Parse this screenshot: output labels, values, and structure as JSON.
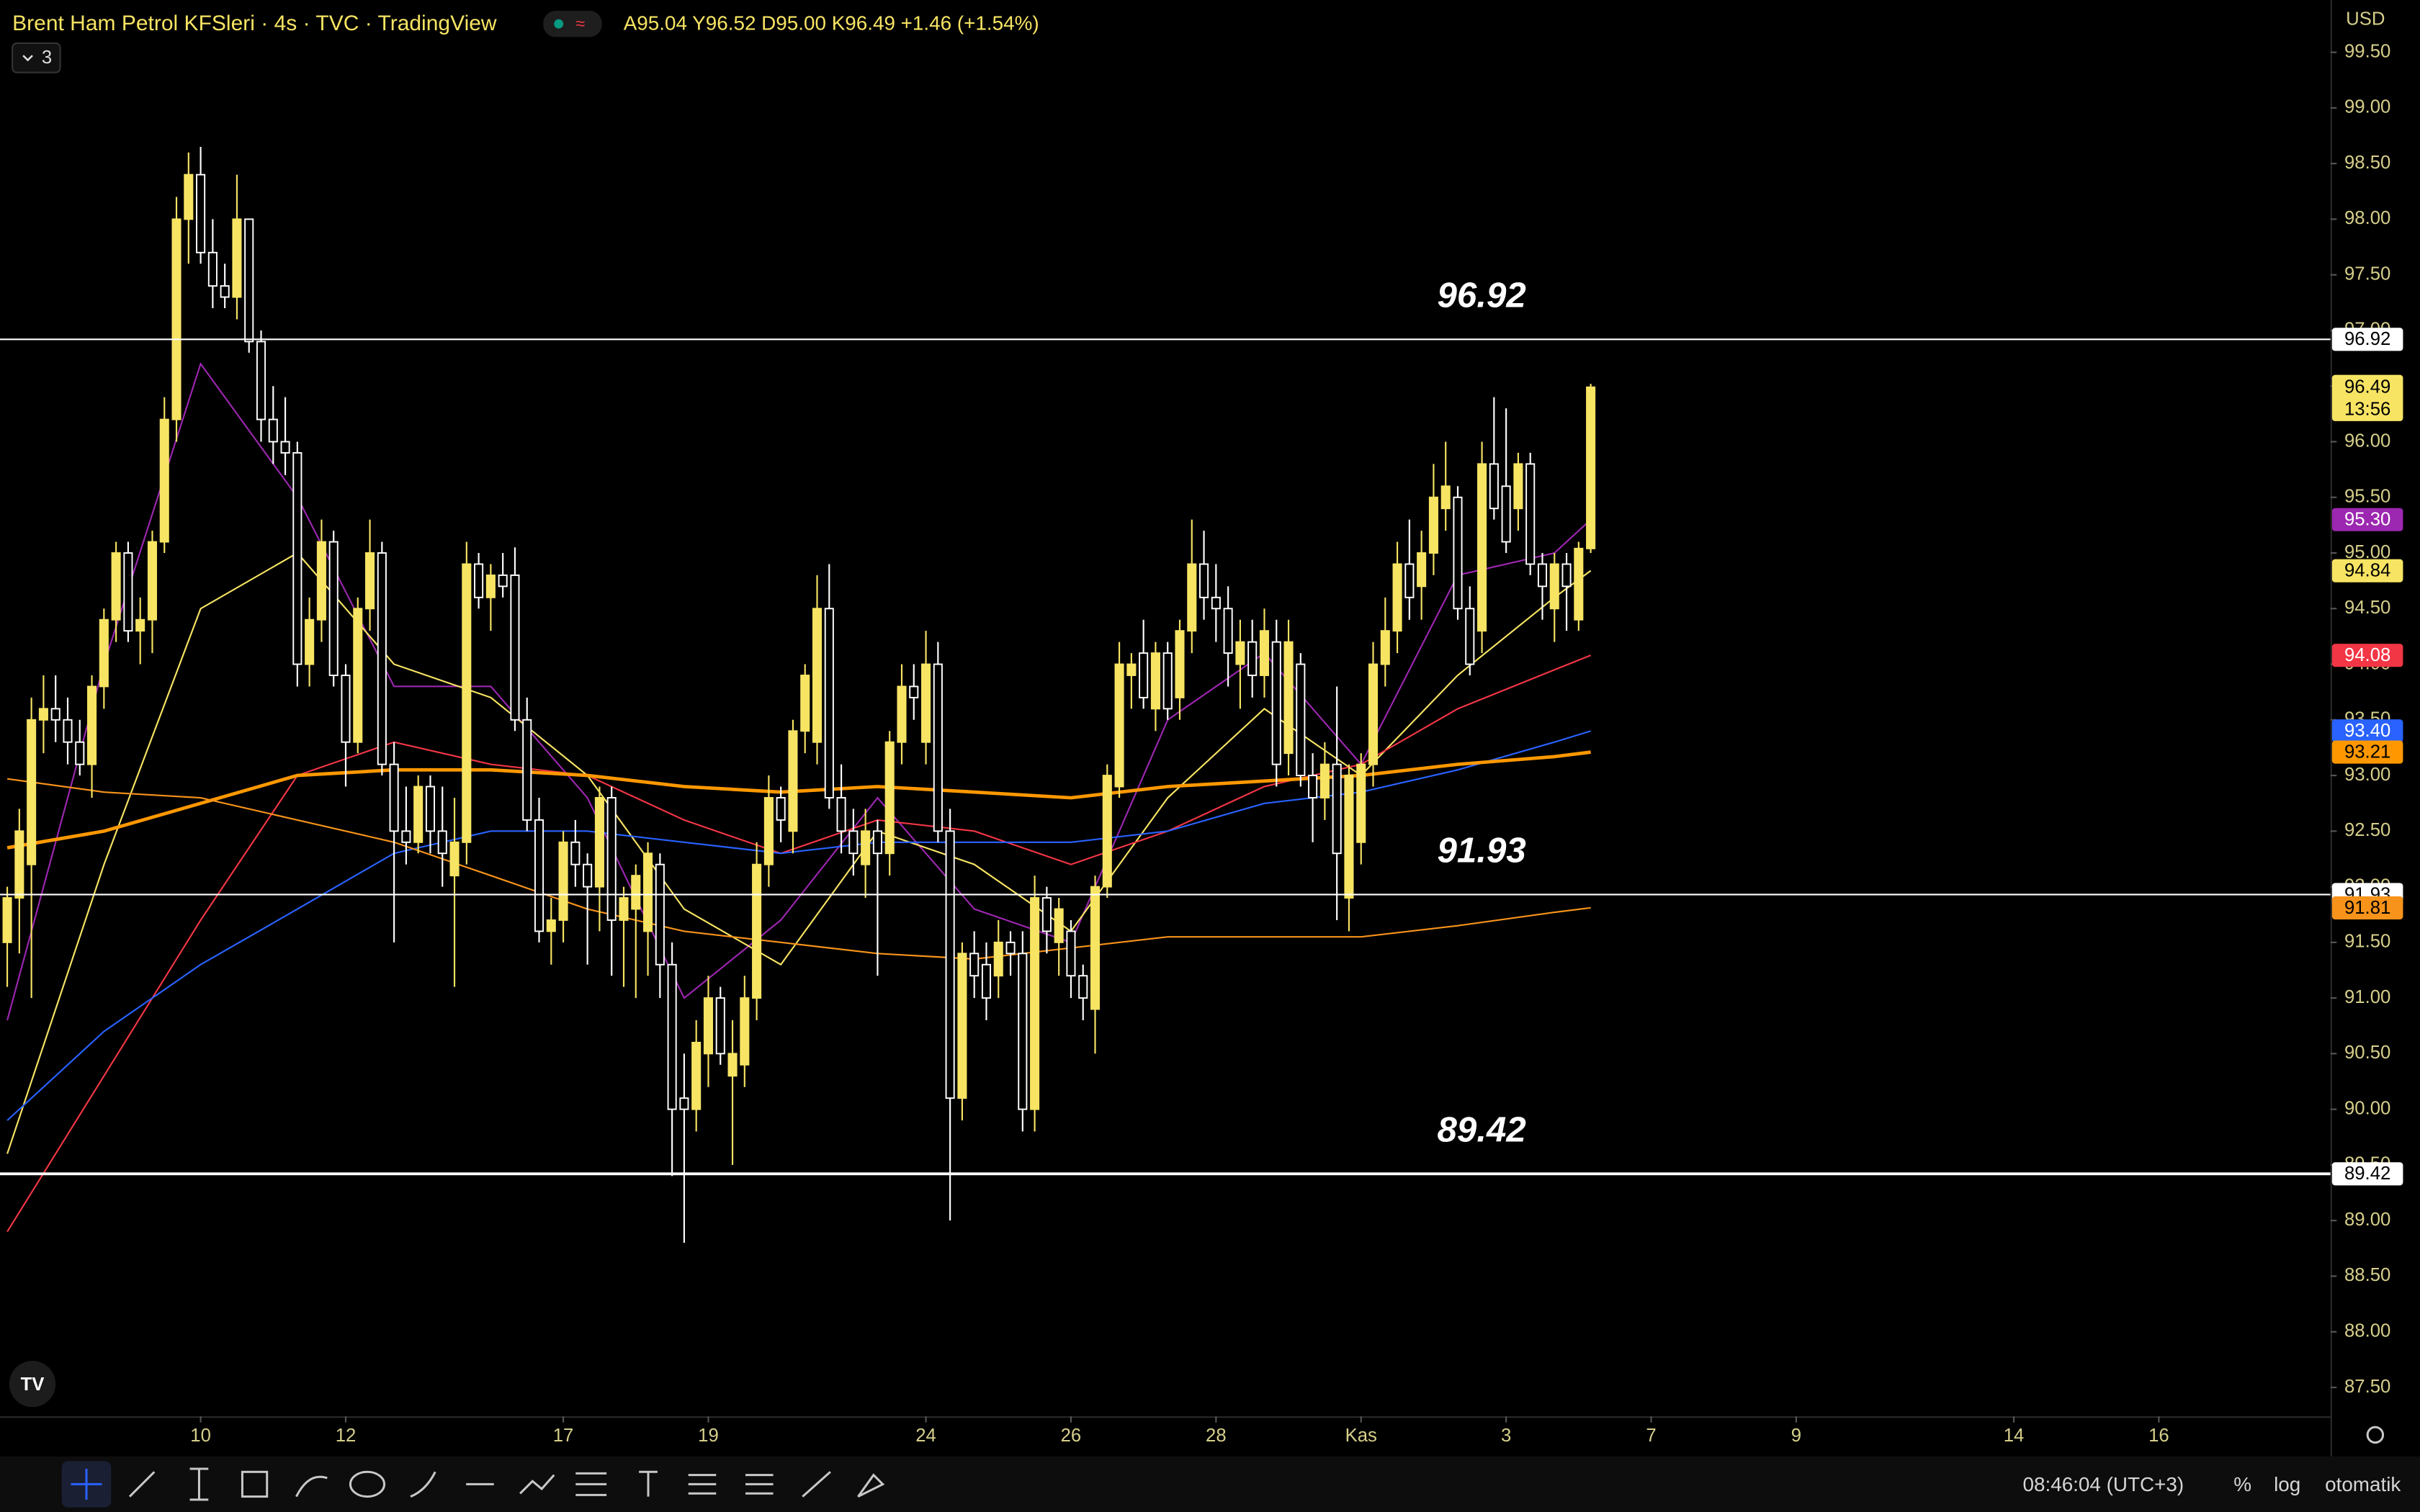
{
  "header": {
    "symbol": "Brent Ham Petrol KFSleri · 4s · TVC · TradingView",
    "ohlc": "A95.04 Y96.52 D95.00 K96.49 +1.46 (+1.54%)",
    "indicators": "3",
    "currency": "USD"
  },
  "footer": {
    "clock": "08:46:04 (UTC+3)",
    "percent": "%",
    "log": "log",
    "auto": "otomatik"
  },
  "chart_data": {
    "type": "candlestick",
    "up_color": "#f7e463",
    "down_color": "#ffffff",
    "ylim": [
      87.24,
      99.97
    ],
    "xlim": [
      -0.6,
      192.2
    ],
    "yticks": [
      {
        "value": 87.5,
        "label": "87.50"
      },
      {
        "value": 88,
        "label": "88.00"
      },
      {
        "value": 88.5,
        "label": "88.50"
      },
      {
        "value": 89,
        "label": "89.00"
      },
      {
        "value": 89.5,
        "label": "89.50"
      },
      {
        "value": 90,
        "label": "90.00"
      },
      {
        "value": 90.5,
        "label": "90.50"
      },
      {
        "value": 91,
        "label": "91.00"
      },
      {
        "value": 91.5,
        "label": "91.50"
      },
      {
        "value": 92,
        "label": "92.00"
      },
      {
        "value": 92.5,
        "label": "92.50"
      },
      {
        "value": 93,
        "label": "93.00"
      },
      {
        "value": 93.5,
        "label": "93.50"
      },
      {
        "value": 94,
        "label": "94.00"
      },
      {
        "value": 94.5,
        "label": "94.50"
      },
      {
        "value": 95,
        "label": "95.00"
      },
      {
        "value": 95.5,
        "label": "95.50"
      },
      {
        "value": 96,
        "label": "96.00"
      },
      {
        "value": 96.5,
        "label": "96.50"
      },
      {
        "value": 97,
        "label": "97.00"
      },
      {
        "value": 97.5,
        "label": "97.50"
      },
      {
        "value": 98,
        "label": "98.00"
      },
      {
        "value": 98.5,
        "label": "98.50"
      },
      {
        "value": 99,
        "label": "99.00"
      },
      {
        "value": 99.5,
        "label": "99.50"
      }
    ],
    "xticks": [
      {
        "value": 16,
        "label": "10"
      },
      {
        "value": 28,
        "label": "12"
      },
      {
        "value": 46,
        "label": "17"
      },
      {
        "value": 58,
        "label": "19"
      },
      {
        "value": 76,
        "label": "24"
      },
      {
        "value": 88,
        "label": "26"
      },
      {
        "value": 100,
        "label": "28"
      },
      {
        "value": 112,
        "label": "Kas"
      },
      {
        "value": 124,
        "label": "3"
      },
      {
        "value": 136,
        "label": "7"
      },
      {
        "value": 148,
        "label": "9"
      },
      {
        "value": 166,
        "label": "14"
      },
      {
        "value": 178,
        "label": "16"
      }
    ],
    "ohlc": [
      [
        91.5,
        92.0,
        91.1,
        91.9
      ],
      [
        91.9,
        92.7,
        91.4,
        92.5
      ],
      [
        92.2,
        93.7,
        91.0,
        93.5
      ],
      [
        93.5,
        93.9,
        93.2,
        93.6
      ],
      [
        93.6,
        93.9,
        93.3,
        93.5
      ],
      [
        93.5,
        93.7,
        93.1,
        93.3
      ],
      [
        93.3,
        93.5,
        93.0,
        93.1
      ],
      [
        93.1,
        93.9,
        92.8,
        93.8
      ],
      [
        93.8,
        94.5,
        93.6,
        94.4
      ],
      [
        94.4,
        95.1,
        94.2,
        95.0
      ],
      [
        95.0,
        95.1,
        94.2,
        94.3
      ],
      [
        94.3,
        94.6,
        94.0,
        94.4
      ],
      [
        94.4,
        95.2,
        94.1,
        95.1
      ],
      [
        95.1,
        96.4,
        95.0,
        96.2
      ],
      [
        96.2,
        98.2,
        96.0,
        98.0
      ],
      [
        98.0,
        98.6,
        97.6,
        98.4
      ],
      [
        98.4,
        98.65,
        97.6,
        97.7
      ],
      [
        97.7,
        98.0,
        97.2,
        97.4
      ],
      [
        97.4,
        97.6,
        97.2,
        97.3
      ],
      [
        97.3,
        98.4,
        97.1,
        98.0
      ],
      [
        98.0,
        98.0,
        96.8,
        96.9
      ],
      [
        96.9,
        97.0,
        96.0,
        96.2
      ],
      [
        96.2,
        96.5,
        95.8,
        96.0
      ],
      [
        96.0,
        96.4,
        95.7,
        95.9
      ],
      [
        95.9,
        96.0,
        93.8,
        94.0
      ],
      [
        94.0,
        94.6,
        93.8,
        94.4
      ],
      [
        94.4,
        95.3,
        94.2,
        95.1
      ],
      [
        95.1,
        95.2,
        93.8,
        93.9
      ],
      [
        93.9,
        94.0,
        92.9,
        93.3
      ],
      [
        93.3,
        94.6,
        93.2,
        94.5
      ],
      [
        94.5,
        95.3,
        94.3,
        95.0
      ],
      [
        95.0,
        95.1,
        93.0,
        93.1
      ],
      [
        93.1,
        93.3,
        91.5,
        92.5
      ],
      [
        92.5,
        92.9,
        92.2,
        92.4
      ],
      [
        92.4,
        93.0,
        92.3,
        92.9
      ],
      [
        92.9,
        93.0,
        92.3,
        92.5
      ],
      [
        92.5,
        92.9,
        92.0,
        92.3
      ],
      [
        92.1,
        92.8,
        91.1,
        92.4
      ],
      [
        92.4,
        95.1,
        92.2,
        94.9
      ],
      [
        94.9,
        95.0,
        94.5,
        94.6
      ],
      [
        94.6,
        94.9,
        94.3,
        94.8
      ],
      [
        94.8,
        95.0,
        94.6,
        94.7
      ],
      [
        94.8,
        95.05,
        93.4,
        93.5
      ],
      [
        93.5,
        93.7,
        92.5,
        92.6
      ],
      [
        92.6,
        92.8,
        91.5,
        91.6
      ],
      [
        91.6,
        91.9,
        91.3,
        91.7
      ],
      [
        91.7,
        92.5,
        91.5,
        92.4
      ],
      [
        92.4,
        92.6,
        92.0,
        92.2
      ],
      [
        92.2,
        92.3,
        91.3,
        92.0
      ],
      [
        92.0,
        92.9,
        91.6,
        92.8
      ],
      [
        92.8,
        92.9,
        91.2,
        91.7
      ],
      [
        91.7,
        92.0,
        91.1,
        91.9
      ],
      [
        91.8,
        92.2,
        91.0,
        92.1
      ],
      [
        91.6,
        92.4,
        91.2,
        92.3
      ],
      [
        92.2,
        92.3,
        91.0,
        91.3
      ],
      [
        91.3,
        91.5,
        89.4,
        90.0
      ],
      [
        90.1,
        90.5,
        88.8,
        90.0
      ],
      [
        90.0,
        90.8,
        89.8,
        90.6
      ],
      [
        90.5,
        91.2,
        90.2,
        91.0
      ],
      [
        91.0,
        91.1,
        90.4,
        90.5
      ],
      [
        90.3,
        90.8,
        89.5,
        90.5
      ],
      [
        90.4,
        91.2,
        90.2,
        91.0
      ],
      [
        91.0,
        92.4,
        90.8,
        92.2
      ],
      [
        92.2,
        93.0,
        92.0,
        92.8
      ],
      [
        92.8,
        92.9,
        92.4,
        92.6
      ],
      [
        92.5,
        93.5,
        92.3,
        93.4
      ],
      [
        93.4,
        94.0,
        93.2,
        93.9
      ],
      [
        93.3,
        94.8,
        93.1,
        94.5
      ],
      [
        94.5,
        94.9,
        92.7,
        92.8
      ],
      [
        92.8,
        93.1,
        92.3,
        92.5
      ],
      [
        92.5,
        92.7,
        92.1,
        92.3
      ],
      [
        92.2,
        92.7,
        91.9,
        92.5
      ],
      [
        92.5,
        92.6,
        91.2,
        92.3
      ],
      [
        92.3,
        93.4,
        92.1,
        93.3
      ],
      [
        93.3,
        94.0,
        93.1,
        93.8
      ],
      [
        93.8,
        94.0,
        93.5,
        93.7
      ],
      [
        93.3,
        94.3,
        93.1,
        94.0
      ],
      [
        94.0,
        94.2,
        92.4,
        92.5
      ],
      [
        92.5,
        92.7,
        89.0,
        90.1
      ],
      [
        90.1,
        91.5,
        89.9,
        91.4
      ],
      [
        91.4,
        91.6,
        91.0,
        91.2
      ],
      [
        91.3,
        91.5,
        90.8,
        91.0
      ],
      [
        91.2,
        91.7,
        91.0,
        91.5
      ],
      [
        91.5,
        91.6,
        91.2,
        91.4
      ],
      [
        91.4,
        91.6,
        89.8,
        90.0
      ],
      [
        90.0,
        92.1,
        89.8,
        91.9
      ],
      [
        91.9,
        92.0,
        91.4,
        91.6
      ],
      [
        91.5,
        91.9,
        91.2,
        91.8
      ],
      [
        91.6,
        91.7,
        91.0,
        91.2
      ],
      [
        91.2,
        91.3,
        90.8,
        91.0
      ],
      [
        90.9,
        92.1,
        90.5,
        92.0
      ],
      [
        92.0,
        93.1,
        91.9,
        93.0
      ],
      [
        92.9,
        94.2,
        92.8,
        94.0
      ],
      [
        93.9,
        94.1,
        93.6,
        94.0
      ],
      [
        94.1,
        94.4,
        93.6,
        93.7
      ],
      [
        93.6,
        94.2,
        93.4,
        94.1
      ],
      [
        94.1,
        94.2,
        93.5,
        93.6
      ],
      [
        93.7,
        94.4,
        93.5,
        94.3
      ],
      [
        94.3,
        95.3,
        94.1,
        94.9
      ],
      [
        94.9,
        95.2,
        94.4,
        94.6
      ],
      [
        94.6,
        94.9,
        94.2,
        94.5
      ],
      [
        94.5,
        94.7,
        93.8,
        94.1
      ],
      [
        94.0,
        94.4,
        93.6,
        94.2
      ],
      [
        94.2,
        94.4,
        93.7,
        93.9
      ],
      [
        93.9,
        94.5,
        93.7,
        94.3
      ],
      [
        94.2,
        94.4,
        92.9,
        93.1
      ],
      [
        93.2,
        94.4,
        93.0,
        94.2
      ],
      [
        94.0,
        94.1,
        92.9,
        93.0
      ],
      [
        93.0,
        93.2,
        92.4,
        92.8
      ],
      [
        92.8,
        93.3,
        92.6,
        93.1
      ],
      [
        93.1,
        93.8,
        91.7,
        92.3
      ],
      [
        91.9,
        93.1,
        91.6,
        93.0
      ],
      [
        92.4,
        93.2,
        92.2,
        93.1
      ],
      [
        93.1,
        94.2,
        92.9,
        94.0
      ],
      [
        94.0,
        94.6,
        93.8,
        94.3
      ],
      [
        94.3,
        95.1,
        94.1,
        94.9
      ],
      [
        94.9,
        95.3,
        94.4,
        94.6
      ],
      [
        94.7,
        95.2,
        94.4,
        95.0
      ],
      [
        95.0,
        95.8,
        94.8,
        95.5
      ],
      [
        95.4,
        96.0,
        95.2,
        95.6
      ],
      [
        95.5,
        95.6,
        94.4,
        94.5
      ],
      [
        94.5,
        94.7,
        93.9,
        94.0
      ],
      [
        94.3,
        96.0,
        94.1,
        95.8
      ],
      [
        95.8,
        96.4,
        95.3,
        95.4
      ],
      [
        95.6,
        96.3,
        95.0,
        95.1
      ],
      [
        95.4,
        95.9,
        95.2,
        95.8
      ],
      [
        95.8,
        95.9,
        94.8,
        94.9
      ],
      [
        94.9,
        95.0,
        94.4,
        94.7
      ],
      [
        94.5,
        95.0,
        94.2,
        94.9
      ],
      [
        94.9,
        95.0,
        94.3,
        94.7
      ],
      [
        94.4,
        95.1,
        94.3,
        95.04
      ],
      [
        95.04,
        96.52,
        95.0,
        96.49
      ]
    ],
    "last_price": {
      "value": 96.49,
      "label": "96.49",
      "countdown": "13:56"
    },
    "lines": [
      {
        "color": "#9c27b0",
        "width": 1,
        "price_label": "95.30",
        "text_color": "#fff",
        "x": [
          0,
          8,
          16,
          24,
          32,
          40,
          48,
          56,
          64,
          72,
          80,
          88,
          96,
          104,
          112,
          120,
          128,
          131
        ],
        "values": [
          90.8,
          94.0,
          96.7,
          95.5,
          93.8,
          93.8,
          92.8,
          91.0,
          91.7,
          92.8,
          91.8,
          91.5,
          93.5,
          94.1,
          93.1,
          94.8,
          95.0,
          95.3
        ]
      },
      {
        "color": "#f7e463",
        "width": 1,
        "price_label": "94.84",
        "text_color": "#000",
        "x": [
          0,
          8,
          16,
          24,
          32,
          40,
          48,
          56,
          64,
          72,
          80,
          88,
          96,
          104,
          112,
          120,
          128,
          131
        ],
        "values": [
          89.6,
          92.2,
          94.5,
          95.0,
          94.0,
          93.7,
          93.0,
          91.8,
          91.3,
          92.5,
          92.2,
          91.6,
          92.8,
          93.6,
          93.0,
          93.9,
          94.6,
          94.84
        ]
      },
      {
        "color": "#f23645",
        "width": 1,
        "price_label": "94.08",
        "text_color": "#fff",
        "x": [
          0,
          8,
          16,
          24,
          32,
          40,
          48,
          56,
          64,
          72,
          80,
          88,
          96,
          104,
          112,
          120,
          128,
          131
        ],
        "values": [
          88.9,
          90.3,
          91.7,
          93.0,
          93.3,
          93.1,
          93.0,
          92.6,
          92.3,
          92.6,
          92.5,
          92.2,
          92.5,
          92.9,
          93.1,
          93.6,
          93.95,
          94.08
        ]
      },
      {
        "color": "#2962ff",
        "width": 1,
        "price_label": "93.40",
        "text_color": "#fff",
        "x": [
          0,
          8,
          16,
          24,
          32,
          40,
          48,
          56,
          64,
          72,
          80,
          88,
          96,
          104,
          112,
          120,
          128,
          131
        ],
        "values": [
          89.9,
          90.7,
          91.3,
          91.8,
          92.3,
          92.5,
          92.5,
          92.4,
          92.3,
          92.4,
          92.4,
          92.4,
          92.5,
          92.75,
          92.85,
          93.05,
          93.3,
          93.4
        ]
      },
      {
        "color": "#ff9800",
        "width": 2.2,
        "price_label": "93.21",
        "text_color": "#000",
        "x": [
          0,
          8,
          16,
          24,
          32,
          40,
          48,
          56,
          64,
          72,
          80,
          88,
          96,
          104,
          112,
          120,
          128,
          131
        ],
        "values": [
          92.35,
          92.5,
          92.75,
          93.0,
          93.05,
          93.05,
          93.0,
          92.9,
          92.85,
          92.9,
          92.85,
          92.8,
          92.9,
          92.95,
          93.0,
          93.1,
          93.17,
          93.21
        ]
      },
      {
        "color": "#f7931a",
        "width": 1,
        "price_label": "91.81",
        "text_color": "#000",
        "x": [
          0,
          8,
          16,
          24,
          32,
          40,
          48,
          56,
          64,
          72,
          80,
          88,
          96,
          104,
          112,
          120,
          128,
          131
        ],
        "values": [
          92.97,
          92.85,
          92.8,
          92.6,
          92.4,
          92.1,
          91.8,
          91.6,
          91.5,
          91.4,
          91.35,
          91.45,
          91.55,
          91.55,
          91.55,
          91.65,
          91.77,
          91.81
        ]
      }
    ],
    "hlines": [
      {
        "value": 96.92,
        "label": "96.92",
        "width": 1
      },
      {
        "value": 91.93,
        "label": "91.93",
        "width": 1
      },
      {
        "value": 89.42,
        "label": "89.42",
        "width": 1.8
      }
    ]
  }
}
